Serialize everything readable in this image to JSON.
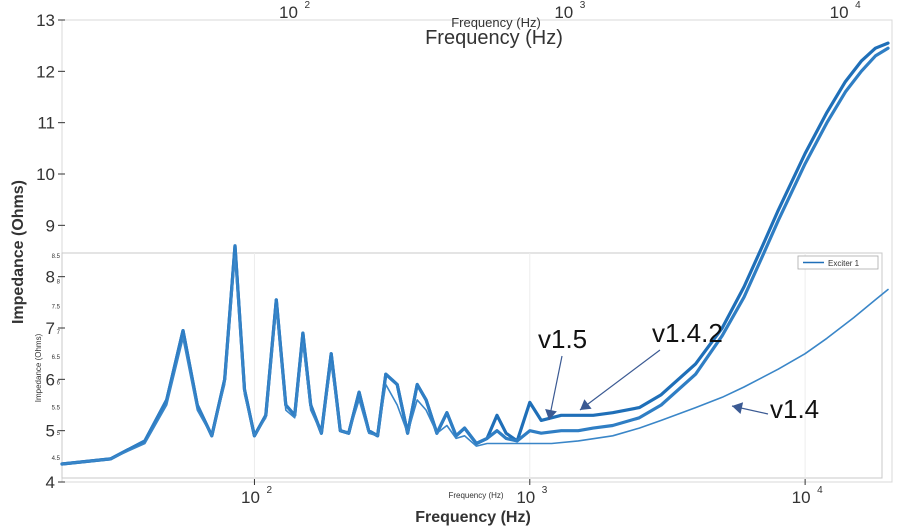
{
  "chart_data": {
    "type": "line",
    "xlabel": "Frequency (Hz)",
    "ylabel": "Impedance (Ohms)",
    "x_scale": "log",
    "xlim": [
      20,
      20000
    ],
    "ylim": [
      4,
      13
    ],
    "x_ticks": [
      {
        "value": 100,
        "base": "10",
        "exp": "2"
      },
      {
        "value": 1000,
        "base": "10",
        "exp": "3"
      },
      {
        "value": 10000,
        "base": "10",
        "exp": "4"
      }
    ],
    "y_ticks": [
      4,
      5,
      6,
      7,
      8,
      9,
      10,
      11,
      12,
      13
    ],
    "inner_y_ticks": [
      "4.5",
      "5",
      "5.5",
      "6",
      "6.5",
      "7",
      "7.5",
      "8",
      "8.5"
    ],
    "inner_ylabel": "Impedance (Ohms)",
    "inner_xlabel": "Frequency (Hz)",
    "legend": {
      "label": "Exciter 1",
      "placement": "top-right"
    },
    "annotations": [
      {
        "text": "v1.5",
        "x": 1150,
        "y": 5.15
      },
      {
        "text": "v1.4.2",
        "x": 1580,
        "y": 5.45
      },
      {
        "text": "v1.4",
        "x": 6000,
        "y": 5.45
      }
    ],
    "series": [
      {
        "color": "#1f6fb8",
        "x": [
          20,
          30,
          40,
          48,
          55,
          62,
          70,
          78,
          85,
          92,
          100,
          110,
          120,
          130,
          140,
          150,
          160,
          175,
          190,
          205,
          220,
          240,
          260,
          280,
          300,
          330,
          360,
          390,
          420,
          460,
          500,
          540,
          580,
          640,
          700,
          760,
          820,
          900,
          1000,
          1100,
          1300,
          1500,
          1700,
          2000,
          2500,
          3000,
          4000,
          5000,
          6000,
          7000,
          8000,
          10000,
          12000,
          14000,
          16000,
          18000,
          20000
        ],
        "y": [
          4.35,
          4.45,
          4.8,
          5.6,
          6.95,
          5.5,
          4.9,
          6.0,
          8.6,
          5.8,
          4.9,
          5.3,
          7.55,
          5.5,
          5.3,
          6.9,
          5.5,
          4.95,
          6.5,
          5.0,
          4.95,
          5.75,
          5.0,
          4.9,
          6.1,
          5.9,
          4.95,
          5.9,
          5.6,
          4.95,
          5.35,
          4.9,
          5.05,
          4.75,
          4.85,
          5.3,
          4.95,
          4.8,
          5.55,
          5.2,
          5.3,
          5.3,
          5.3,
          5.35,
          5.45,
          5.7,
          6.3,
          7.0,
          7.8,
          8.6,
          9.3,
          10.4,
          11.2,
          11.8,
          12.2,
          12.45,
          12.55
        ]
      },
      {
        "color": "#2f7ec4",
        "x": [
          20,
          30,
          40,
          48,
          55,
          62,
          70,
          78,
          85,
          92,
          100,
          110,
          120,
          130,
          140,
          150,
          160,
          175,
          190,
          205,
          220,
          240,
          260,
          280,
          300,
          330,
          360,
          390,
          420,
          460,
          500,
          540,
          580,
          640,
          700,
          760,
          820,
          900,
          1000,
          1100,
          1300,
          1500,
          1700,
          2000,
          2500,
          3000,
          4000,
          5000,
          6000,
          7000,
          8000,
          10000,
          12000,
          14000,
          16000,
          18000,
          20000
        ],
        "y": [
          4.35,
          4.45,
          4.8,
          5.6,
          6.95,
          5.5,
          4.9,
          6.0,
          8.6,
          5.8,
          4.9,
          5.3,
          7.55,
          5.5,
          5.3,
          6.9,
          5.5,
          4.95,
          6.5,
          5.0,
          4.95,
          5.75,
          5.0,
          4.9,
          6.1,
          5.9,
          4.95,
          5.9,
          5.6,
          4.95,
          5.35,
          4.9,
          5.05,
          4.75,
          4.85,
          5.0,
          4.85,
          4.8,
          5.0,
          4.95,
          5.0,
          5.0,
          5.05,
          5.1,
          5.25,
          5.5,
          6.1,
          6.85,
          7.6,
          8.4,
          9.1,
          10.2,
          11.0,
          11.6,
          12.0,
          12.3,
          12.45
        ]
      },
      {
        "color": "#3a86c8",
        "x": [
          20,
          30,
          40,
          48,
          55,
          62,
          70,
          78,
          85,
          92,
          100,
          110,
          120,
          130,
          140,
          150,
          160,
          175,
          190,
          205,
          220,
          240,
          260,
          280,
          300,
          330,
          360,
          390,
          420,
          460,
          500,
          540,
          580,
          640,
          700,
          800,
          900,
          1000,
          1200,
          1500,
          2000,
          2500,
          3000,
          4000,
          5000,
          6000,
          8000,
          10000,
          12000,
          15000,
          18000,
          20000
        ],
        "y": [
          4.35,
          4.45,
          4.75,
          5.5,
          6.8,
          5.4,
          4.9,
          5.9,
          8.4,
          5.7,
          4.9,
          5.25,
          7.4,
          5.4,
          5.25,
          6.7,
          5.4,
          4.95,
          6.3,
          5.0,
          4.95,
          5.6,
          4.95,
          4.9,
          5.9,
          5.5,
          4.95,
          5.6,
          5.4,
          4.95,
          5.1,
          4.85,
          4.9,
          4.7,
          4.75,
          4.75,
          4.75,
          4.75,
          4.75,
          4.8,
          4.9,
          5.05,
          5.2,
          5.45,
          5.65,
          5.85,
          6.2,
          6.5,
          6.8,
          7.2,
          7.55,
          7.75
        ]
      }
    ]
  }
}
